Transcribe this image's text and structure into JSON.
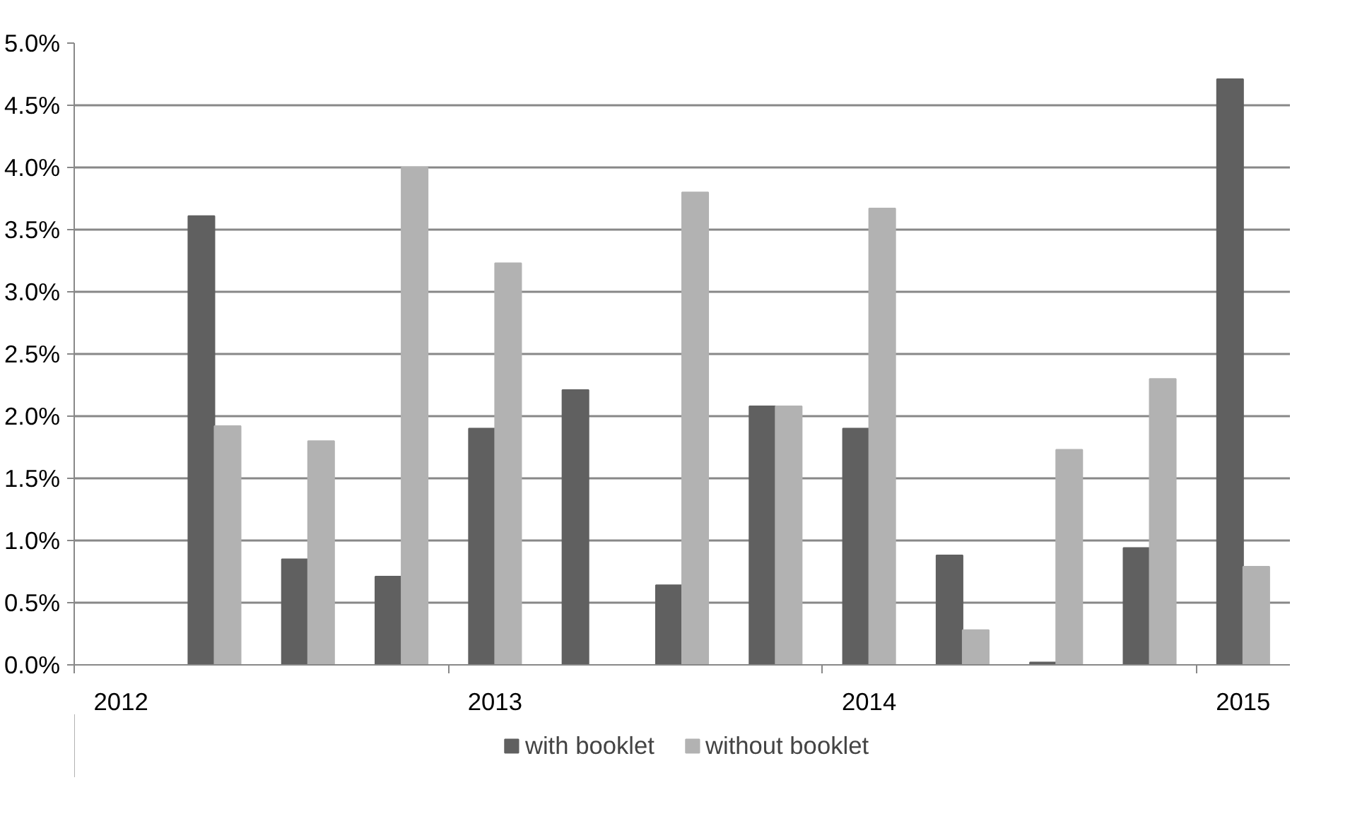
{
  "chart_data": {
    "type": "bar",
    "categories": [
      "2012",
      null,
      null,
      null,
      "2013",
      null,
      null,
      null,
      "2014",
      null,
      null,
      null,
      "2015"
    ],
    "series": [
      {
        "name": "with booklet",
        "color": "#606060",
        "values": [
          null,
          3.61,
          0.85,
          0.71,
          1.9,
          2.21,
          0.64,
          2.08,
          1.9,
          0.88,
          0.02,
          0.94,
          4.71
        ]
      },
      {
        "name": "without booklet",
        "color": "#b2b2b2",
        "values": [
          null,
          1.92,
          1.8,
          4.0,
          3.23,
          null,
          3.8,
          2.08,
          3.67,
          0.28,
          1.73,
          2.3,
          0.79
        ]
      }
    ],
    "ylim": [
      0,
      5
    ],
    "yticks": [
      {
        "value": 0,
        "label": "0.0%"
      },
      {
        "value": 0.5,
        "label": "0.5%"
      },
      {
        "value": 1,
        "label": "1.0%"
      },
      {
        "value": 1.5,
        "label": "1.5%"
      },
      {
        "value": 2,
        "label": "2.0%"
      },
      {
        "value": 2.5,
        "label": "2.5%"
      },
      {
        "value": 3,
        "label": "3.0%"
      },
      {
        "value": 3.5,
        "label": "3.5%"
      },
      {
        "value": 4,
        "label": "4.0%"
      },
      {
        "value": 4.5,
        "label": "4.5%"
      },
      {
        "value": 5,
        "label": "5.0%"
      }
    ],
    "grid": "y",
    "legend": "bottom"
  }
}
